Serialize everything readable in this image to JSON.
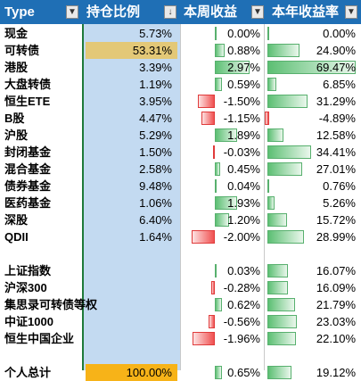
{
  "headers": {
    "type": "Type",
    "ratio": "持仓比例",
    "week": "本周收益",
    "year": "本年收益率"
  },
  "filter_icons": {
    "type": "▼",
    "ratio": "↓",
    "week": "▼",
    "year": "▼"
  },
  "rows": [
    {
      "name": "现金",
      "ratio": "5.73%",
      "week": "0.00%",
      "week_val": 0.0,
      "year": "0.00%",
      "year_val": 0.0
    },
    {
      "name": "可转债",
      "ratio": "53.31%",
      "ratio_highlight": true,
      "week": "0.88%",
      "week_val": 0.88,
      "year": "24.90%",
      "year_val": 24.9
    },
    {
      "name": "港股",
      "ratio": "3.39%",
      "week": "2.97%",
      "week_val": 2.97,
      "year": "69.47%",
      "year_val": 69.47
    },
    {
      "name": "大盘转债",
      "ratio": "1.19%",
      "week": "0.59%",
      "week_val": 0.59,
      "year": "6.85%",
      "year_val": 6.85
    },
    {
      "name": "恒生ETE",
      "ratio": "3.95%",
      "week": "-1.50%",
      "week_val": -1.5,
      "year": "31.29%",
      "year_val": 31.29
    },
    {
      "name": "B股",
      "ratio": "4.47%",
      "week": "-1.15%",
      "week_val": -1.15,
      "year": "-4.89%",
      "year_val": -4.89
    },
    {
      "name": "沪股",
      "ratio": "5.29%",
      "week": "1.89%",
      "week_val": 1.89,
      "year": "12.58%",
      "year_val": 12.58
    },
    {
      "name": "封闭基金",
      "ratio": "1.50%",
      "week": "-0.03%",
      "week_val": -0.03,
      "year": "34.41%",
      "year_val": 34.41
    },
    {
      "name": "混合基金",
      "ratio": "2.58%",
      "week": "0.45%",
      "week_val": 0.45,
      "year": "27.01%",
      "year_val": 27.01
    },
    {
      "name": "债券基金",
      "ratio": "9.48%",
      "week": "0.04%",
      "week_val": 0.04,
      "year": "0.76%",
      "year_val": 0.76
    },
    {
      "name": "医药基金",
      "ratio": "1.06%",
      "week": "1.93%",
      "week_val": 1.93,
      "year": "5.26%",
      "year_val": 5.26
    },
    {
      "name": "深股",
      "ratio": "6.40%",
      "week": "1.20%",
      "week_val": 1.2,
      "year": "15.72%",
      "year_val": 15.72
    },
    {
      "name": "QDII",
      "ratio": "1.64%",
      "week": "-2.00%",
      "week_val": -2.0,
      "year": "28.99%",
      "year_val": 28.99
    },
    {
      "name": "",
      "ratio": "",
      "week": "",
      "week_val": 0,
      "year": "",
      "year_val": 0
    },
    {
      "name": "上证指数",
      "ratio": "",
      "week": "0.03%",
      "week_val": 0.03,
      "year": "16.07%",
      "year_val": 16.07
    },
    {
      "name": "沪深300",
      "ratio": "",
      "week": "-0.28%",
      "week_val": -0.28,
      "year": "16.09%",
      "year_val": 16.09
    },
    {
      "name": "集思录可转债等权",
      "ratio": "",
      "week": "0.62%",
      "week_val": 0.62,
      "year": "21.79%",
      "year_val": 21.79
    },
    {
      "name": "中证1000",
      "ratio": "",
      "week": "-0.56%",
      "week_val": -0.56,
      "year": "23.03%",
      "year_val": 23.03
    },
    {
      "name": "恒生中国企业",
      "ratio": "",
      "week": "-1.96%",
      "week_val": -1.96,
      "year": "22.10%",
      "year_val": 22.1
    },
    {
      "name": "",
      "ratio": "",
      "week": "",
      "week_val": 0,
      "year": "",
      "year_val": 0
    },
    {
      "name": "个人总计",
      "ratio": "100.00%",
      "ratio_total": true,
      "week": "0.65%",
      "week_val": 0.65,
      "year": "19.12%",
      "year_val": 19.12
    }
  ],
  "colors": {
    "header_bg": "#1f6fb5",
    "ratio_col_bg": "#c3daf1",
    "ratio_highlight": "#e3c877",
    "ratio_total": "#f7b318",
    "bar_positive": "#5cbf73",
    "bar_negative": "#f05050",
    "divider_green": "#1f7a3a"
  }
}
